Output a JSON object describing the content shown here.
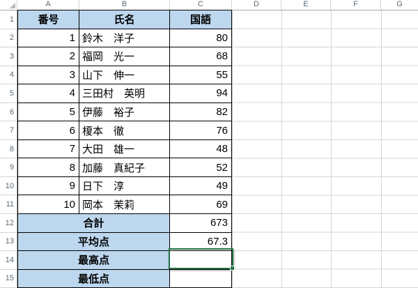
{
  "app": "spreadsheet",
  "column_headers": [
    "A",
    "B",
    "C",
    "D",
    "E",
    "F",
    "G"
  ],
  "row_headers": [
    "1",
    "2",
    "3",
    "4",
    "5",
    "6",
    "7",
    "8",
    "9",
    "10",
    "11",
    "12",
    "13",
    "14",
    "15"
  ],
  "table": {
    "headers": {
      "no": "番号",
      "name": "氏名",
      "subject": "国語"
    },
    "students": [
      {
        "no": "1",
        "name": "鈴木　洋子",
        "score": "80"
      },
      {
        "no": "2",
        "name": "福岡　光一",
        "score": "68"
      },
      {
        "no": "3",
        "name": "山下　伸一",
        "score": "55"
      },
      {
        "no": "4",
        "name": "三田村　英明",
        "score": "94"
      },
      {
        "no": "5",
        "name": "伊藤　裕子",
        "score": "82"
      },
      {
        "no": "6",
        "name": "榎本　徹",
        "score": "76"
      },
      {
        "no": "7",
        "name": "大田　雄一",
        "score": "48"
      },
      {
        "no": "8",
        "name": "加藤　真紀子",
        "score": "52"
      },
      {
        "no": "9",
        "name": "日下　淳",
        "score": "49"
      },
      {
        "no": "10",
        "name": "岡本　茉莉",
        "score": "69"
      }
    ],
    "summary": [
      {
        "label": "合計",
        "value": "673"
      },
      {
        "label": "平均点",
        "value": "67.3"
      },
      {
        "label": "最高点",
        "value": ""
      },
      {
        "label": "最低点",
        "value": ""
      }
    ]
  },
  "selection": {
    "cell": "C14"
  },
  "colors": {
    "header_fill": "#bdd7ee",
    "cell_border": "#000000",
    "gridline": "#d4d4d4",
    "selection_border": "#217346",
    "header_text": "#5a6875"
  }
}
